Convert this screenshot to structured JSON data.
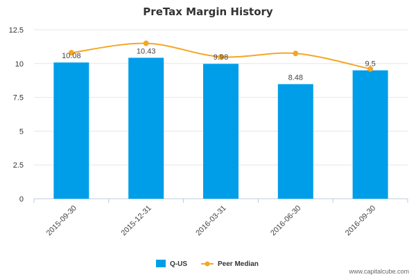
{
  "chart_data": {
    "type": "bar",
    "title": "PreTax Margin History",
    "categories": [
      "2015-09-30",
      "2015-12-31",
      "2016-03-31",
      "2016-06-30",
      "2016-09-30"
    ],
    "series": [
      {
        "name": "Q-US",
        "kind": "bar",
        "color": "#009ee8",
        "values": [
          10.08,
          10.43,
          9.98,
          8.48,
          9.5
        ],
        "labels": [
          "10.08",
          "10.43",
          "9.98",
          "8.48",
          "9.5"
        ]
      },
      {
        "name": "Peer Median",
        "kind": "line",
        "color": "#f5a623",
        "values": [
          10.8,
          11.5,
          10.5,
          10.75,
          9.6
        ]
      }
    ],
    "ylim": [
      0,
      12.5
    ],
    "yticks": [
      "0",
      "2.5",
      "5",
      "7.5",
      "10",
      "12.5"
    ],
    "grid": true,
    "legend_position": "bottom-center"
  },
  "credit": "www.capitalcube.com"
}
